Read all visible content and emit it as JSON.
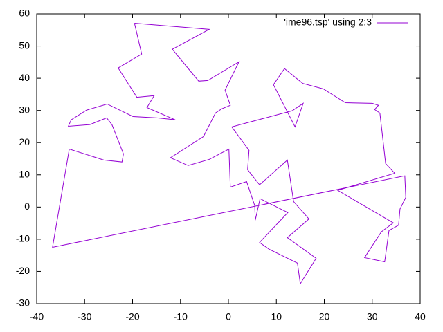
{
  "chart_data": {
    "type": "line",
    "x": [
      -19.6,
      -4.0,
      -11.7,
      -6.2,
      -4.3,
      2.2,
      -0.7,
      0.4,
      -1.4,
      -2.7,
      -5.2,
      -12.1,
      -8.4,
      -4.0,
      0.1,
      0.4,
      3.8,
      5.5,
      5.6,
      6.6,
      12.4,
      6.5,
      8.5,
      14.4,
      15.0,
      18.3,
      12.3,
      16.8,
      13.6,
      12.3,
      6.5,
      4.0,
      4.3,
      0.7,
      13.3,
      15.6,
      13.9,
      9.4,
      11.7,
      15.5,
      19.8,
      24.4,
      30.0,
      31.3,
      30.5,
      31.6,
      32.8,
      34.7,
      22.8,
      34.4,
      31.9,
      28.4,
      32.6,
      33.5,
      35.5,
      35.8,
      37.0,
      36.8,
      -36.7,
      -33.2,
      -26.0,
      -22.2,
      -21.9,
      -24.3,
      -25.4,
      -28.9,
      -33.4,
      -32.8,
      -29.6,
      -25.3,
      -19.9,
      -14.9,
      -11.1,
      -17.0,
      -15.5,
      -19.1,
      -23.0,
      -18.1,
      -19.6
    ],
    "series": [
      {
        "name": "'ime96.tsp' using 2:3",
        "color": "#9400d3",
        "values": [
          57.1,
          55.2,
          49.0,
          39.1,
          39.3,
          45.1,
          36.3,
          31.6,
          30.5,
          29.2,
          21.9,
          15.3,
          12.9,
          14.8,
          18.0,
          6.2,
          7.9,
          0.4,
          -4.1,
          2.6,
          -1.7,
          -11.0,
          -13.1,
          -17.4,
          -23.8,
          -15.9,
          -9.5,
          -3.7,
          1.7,
          14.6,
          6.9,
          11.6,
          17.6,
          24.9,
          29.9,
          32.2,
          24.9,
          38.0,
          43.0,
          38.4,
          36.7,
          32.4,
          32.2,
          31.6,
          30.3,
          29.2,
          13.5,
          10.5,
          5.2,
          -4.9,
          -7.7,
          -15.7,
          -17.0,
          -7.3,
          -5.6,
          -0.6,
          3.0,
          9.7,
          -12.5,
          18.0,
          14.6,
          14.0,
          16.5,
          25.6,
          27.7,
          25.6,
          25.1,
          27.1,
          30.1,
          32.0,
          28.1,
          27.7,
          27.1,
          30.9,
          34.6,
          34.1,
          43.2,
          47.5,
          57.1
        ]
      }
    ],
    "xlim": [
      -40,
      40
    ],
    "xticks": [
      -40,
      -30,
      -20,
      -10,
      0,
      10,
      20,
      30,
      40
    ],
    "ylim": [
      -30,
      60
    ],
    "yticks": [
      -30,
      -20,
      -10,
      0,
      10,
      20,
      30,
      40,
      50,
      60
    ],
    "legend": "top right",
    "grid": false
  }
}
